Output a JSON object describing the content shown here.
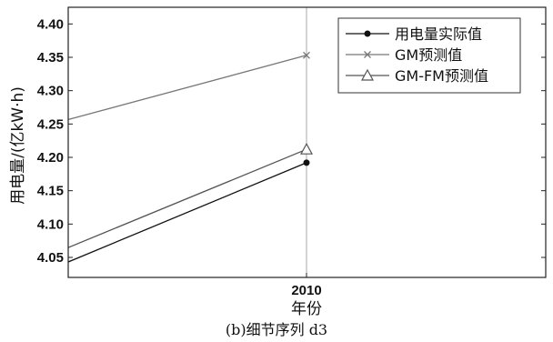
{
  "chart_data": {
    "type": "line",
    "xlabel": "年份",
    "ylabel": "用电量/(亿kW·h)",
    "caption": "(b)细节序列 d3",
    "x_ticks": [
      "2010"
    ],
    "yticks": [
      "4.05",
      "4.10",
      "4.15",
      "4.20",
      "4.25",
      "4.30",
      "4.35",
      "4.40"
    ],
    "ylim": [
      4.02,
      4.425
    ],
    "grid": false,
    "legend_position": "top-right",
    "reference_line": "2010",
    "series": [
      {
        "name": "用电量实际值",
        "marker": "dot",
        "color": "#111111",
        "points": [
          {
            "x": "2008.71",
            "y": 4.0
          },
          {
            "x": "2010",
            "y": 4.192
          }
        ]
      },
      {
        "name": "GM预测值",
        "marker": "x",
        "color": "#777777",
        "points": [
          {
            "x": "2007.53",
            "y": 4.115
          },
          {
            "x": "2010",
            "y": 4.353
          }
        ]
      },
      {
        "name": "GM-FM预测值",
        "marker": "triangle",
        "color": "#555555",
        "points": [
          {
            "x": "2008.56",
            "y": 4.0
          },
          {
            "x": "2010",
            "y": 4.212
          }
        ]
      }
    ]
  }
}
